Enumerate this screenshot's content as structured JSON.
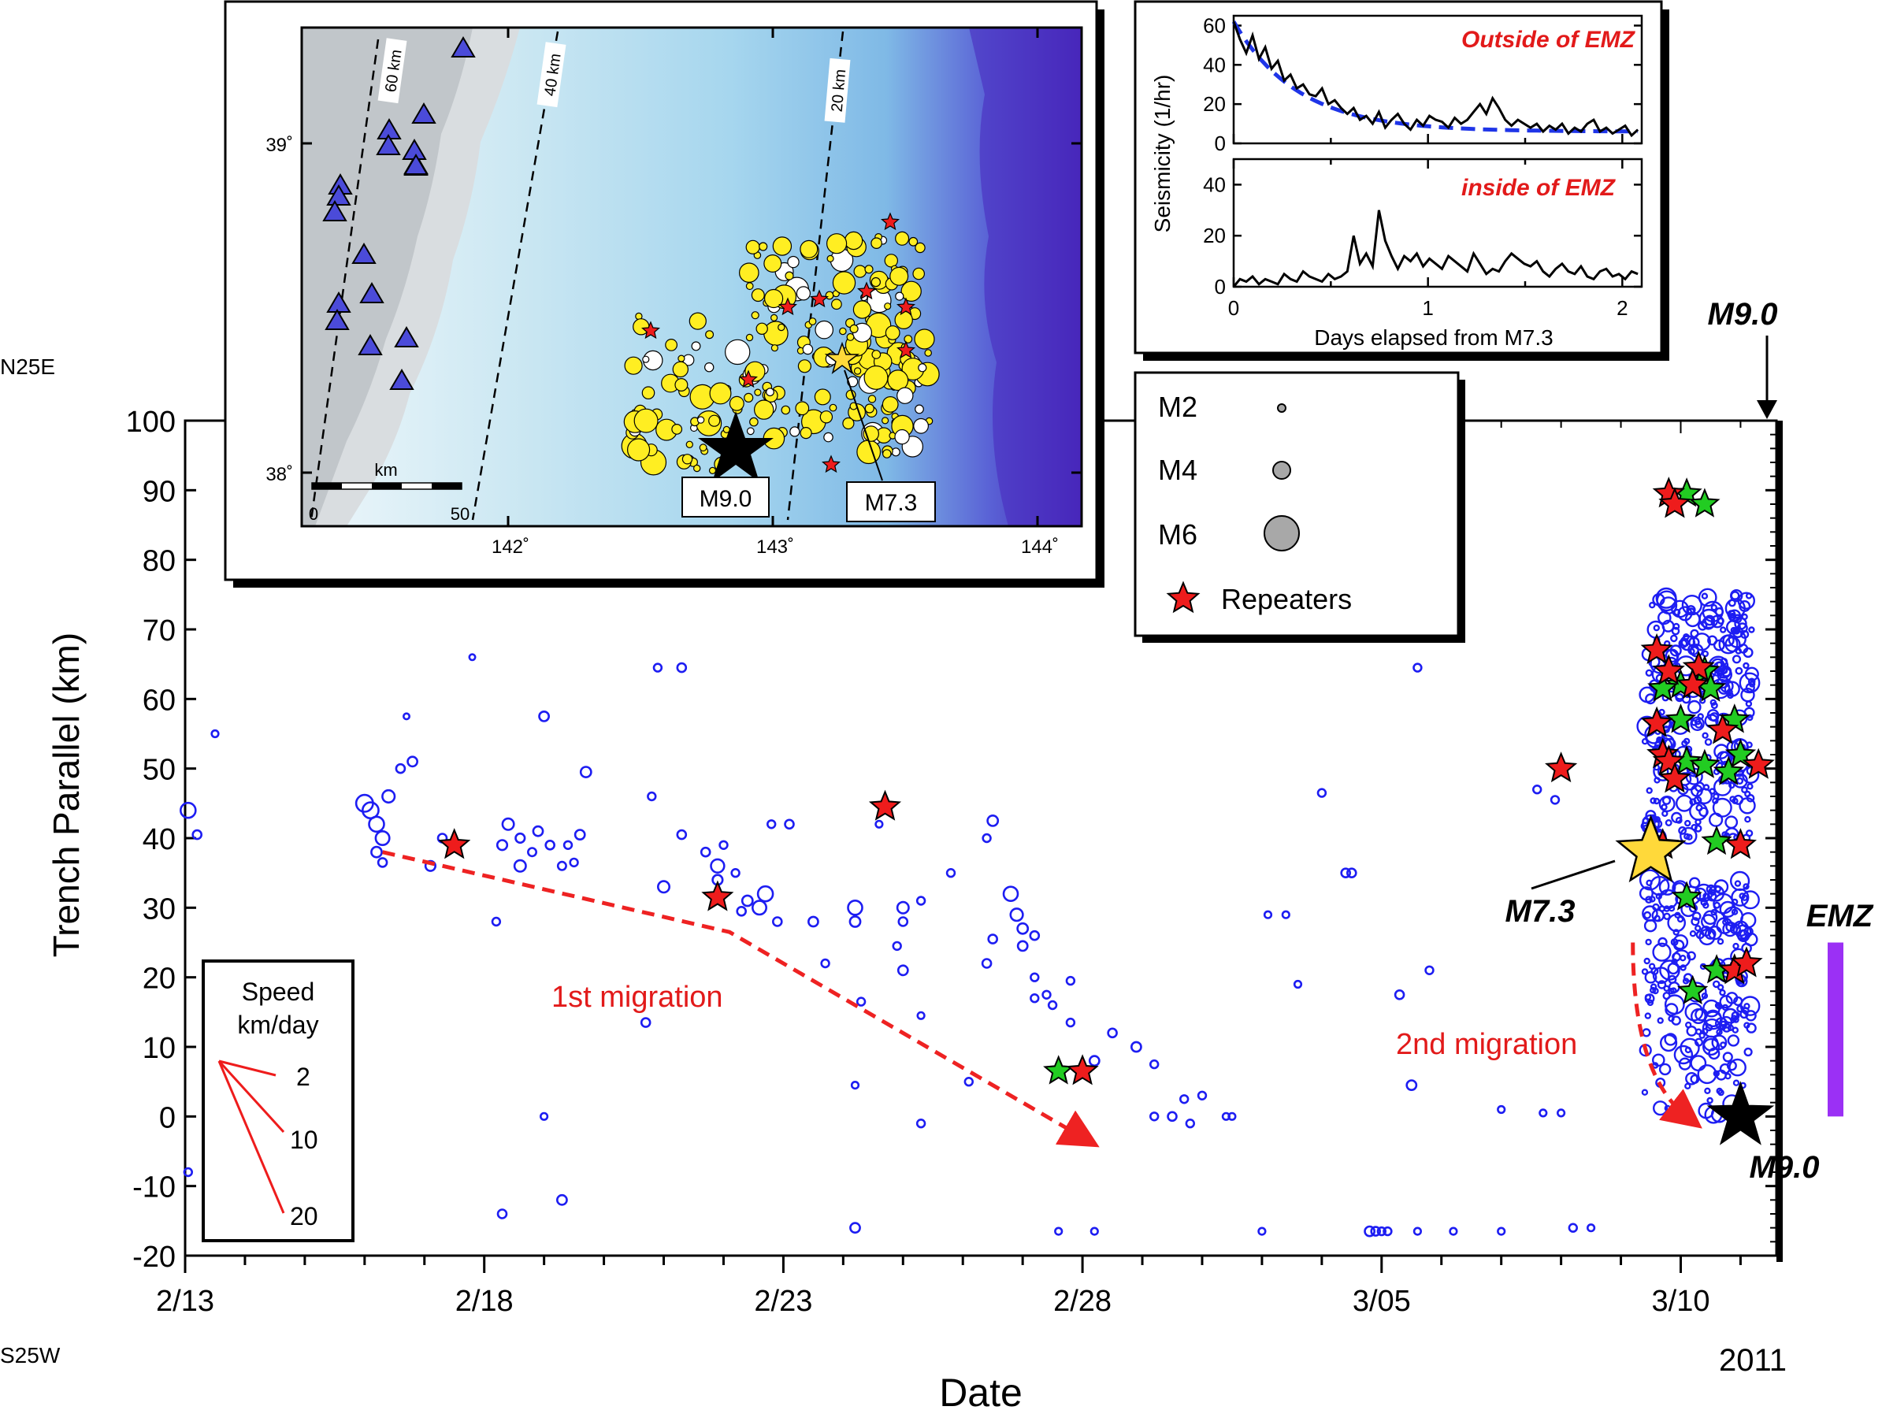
{
  "main_chart": {
    "type": "scatter",
    "xlabel": "Date",
    "ylabel": "Trench Parallel (km)",
    "year": "2011",
    "direction_top": "N25E",
    "direction_bottom": "S25W",
    "x_ticks": [
      {
        "label": "2/13",
        "day": 0
      },
      {
        "label": "2/18",
        "day": 5
      },
      {
        "label": "2/23",
        "day": 10
      },
      {
        "label": "2/28",
        "day": 15
      },
      {
        "label": "3/05",
        "day": 20
      },
      {
        "label": "3/10",
        "day": 25
      }
    ],
    "xlim_days_from_2_13": [
      0,
      26.6
    ],
    "ylim": [
      -20,
      100
    ],
    "y_ticks": [
      -20,
      -10,
      0,
      10,
      20,
      30,
      40,
      50,
      60,
      70,
      80,
      90,
      100
    ],
    "annotations": {
      "m90_top": "M9.0",
      "m90_bottom": "M9.0",
      "m73": "M7.3",
      "emz": "EMZ",
      "first_migration": "1st migration",
      "second_migration": "2nd migration"
    },
    "emz_range_km": [
      0,
      25
    ],
    "mainshock_m90": {
      "day": 26.0,
      "km": 0
    },
    "foreshock_m73": {
      "day": 24.5,
      "km": 38
    },
    "repeaters_red": [
      {
        "day": 4.5,
        "km": 39
      },
      {
        "day": 8.9,
        "km": 31.5
      },
      {
        "day": 11.7,
        "km": 44.5
      },
      {
        "day": 15.0,
        "km": 6.5
      },
      {
        "day": 23.0,
        "km": 50
      },
      {
        "day": 24.8,
        "km": 89.5
      },
      {
        "day": 24.9,
        "km": 88
      },
      {
        "day": 24.6,
        "km": 67
      },
      {
        "day": 24.8,
        "km": 64
      },
      {
        "day": 25.3,
        "km": 64.5
      },
      {
        "day": 25.2,
        "km": 62
      },
      {
        "day": 24.6,
        "km": 56.5
      },
      {
        "day": 24.7,
        "km": 52
      },
      {
        "day": 24.8,
        "km": 51
      },
      {
        "day": 24.9,
        "km": 48.5
      },
      {
        "day": 25.7,
        "km": 55.5
      },
      {
        "day": 26.3,
        "km": 50.5
      },
      {
        "day": 24.7,
        "km": 39
      },
      {
        "day": 26.0,
        "km": 39
      },
      {
        "day": 25.9,
        "km": 21
      },
      {
        "day": 26.1,
        "km": 22
      }
    ],
    "repeaters_green": [
      {
        "day": 14.6,
        "km": 6.5
      },
      {
        "day": 25.1,
        "km": 89.5
      },
      {
        "day": 25.4,
        "km": 88
      },
      {
        "day": 25.0,
        "km": 62
      },
      {
        "day": 25.4,
        "km": 64
      },
      {
        "day": 24.7,
        "km": 61.5
      },
      {
        "day": 25.5,
        "km": 61.5
      },
      {
        "day": 25.0,
        "km": 57
      },
      {
        "day": 25.9,
        "km": 57
      },
      {
        "day": 25.1,
        "km": 51
      },
      {
        "day": 25.4,
        "km": 50.5
      },
      {
        "day": 25.8,
        "km": 49.5
      },
      {
        "day": 26.0,
        "km": 52
      },
      {
        "day": 25.6,
        "km": 39.5
      },
      {
        "day": 25.1,
        "km": 31.5
      },
      {
        "day": 25.6,
        "km": 21
      },
      {
        "day": 25.2,
        "km": 18
      }
    ],
    "events": [
      {
        "day": 0.05,
        "km": 44,
        "m": 4.6
      },
      {
        "day": 0.2,
        "km": 40.5,
        "m": 3.2
      },
      {
        "day": 0.5,
        "km": 55,
        "m": 2.8
      },
      {
        "day": 0.05,
        "km": -8,
        "m": 3.0
      },
      {
        "day": 3.0,
        "km": 45,
        "m": 5.0
      },
      {
        "day": 3.1,
        "km": 44,
        "m": 4.8
      },
      {
        "day": 3.2,
        "km": 42,
        "m": 4.6
      },
      {
        "day": 3.3,
        "km": 40,
        "m": 4.3
      },
      {
        "day": 3.2,
        "km": 38,
        "m": 3.6
      },
      {
        "day": 3.3,
        "km": 36.5,
        "m": 3.2
      },
      {
        "day": 3.4,
        "km": 46,
        "m": 4.0
      },
      {
        "day": 3.6,
        "km": 50,
        "m": 3.2
      },
      {
        "day": 3.8,
        "km": 51,
        "m": 3.4
      },
      {
        "day": 3.7,
        "km": 57.5,
        "m": 2.6
      },
      {
        "day": 4.1,
        "km": 36,
        "m": 3.5
      },
      {
        "day": 4.3,
        "km": 40,
        "m": 3.2
      },
      {
        "day": 4.8,
        "km": 66,
        "m": 2.6
      },
      {
        "day": 5.2,
        "km": 28,
        "m": 3.0
      },
      {
        "day": 5.3,
        "km": 39,
        "m": 3.5
      },
      {
        "day": 5.4,
        "km": 42,
        "m": 3.8
      },
      {
        "day": 5.6,
        "km": 40,
        "m": 3.3
      },
      {
        "day": 5.6,
        "km": 36,
        "m": 3.8
      },
      {
        "day": 5.8,
        "km": 38,
        "m": 3.1
      },
      {
        "day": 5.9,
        "km": 41,
        "m": 3.4
      },
      {
        "day": 6.0,
        "km": 57.5,
        "m": 3.4
      },
      {
        "day": 6.1,
        "km": 39,
        "m": 3.2
      },
      {
        "day": 6.3,
        "km": 36,
        "m": 3.1
      },
      {
        "day": 6.4,
        "km": 39,
        "m": 3.0
      },
      {
        "day": 6.6,
        "km": 40.5,
        "m": 3.4
      },
      {
        "day": 6.7,
        "km": 49.5,
        "m": 3.6
      },
      {
        "day": 6.5,
        "km": 36.5,
        "m": 3.0
      },
      {
        "day": 5.3,
        "km": -14,
        "m": 3.2
      },
      {
        "day": 6.0,
        "km": 0,
        "m": 2.8
      },
      {
        "day": 6.3,
        "km": -12,
        "m": 3.4
      },
      {
        "day": 7.8,
        "km": 46,
        "m": 3.0
      },
      {
        "day": 8.0,
        "km": 33,
        "m": 3.8
      },
      {
        "day": 7.7,
        "km": 13.5,
        "m": 3.2
      },
      {
        "day": 7.9,
        "km": 64.5,
        "m": 3.0
      },
      {
        "day": 8.3,
        "km": 64.5,
        "m": 3.2
      },
      {
        "day": 8.3,
        "km": 40.5,
        "m": 3.2
      },
      {
        "day": 8.7,
        "km": 38,
        "m": 3.2
      },
      {
        "day": 8.9,
        "km": 36,
        "m": 4.2
      },
      {
        "day": 8.9,
        "km": 34,
        "m": 3.5
      },
      {
        "day": 9.0,
        "km": 39,
        "m": 3.0
      },
      {
        "day": 9.2,
        "km": 35,
        "m": 3.0
      },
      {
        "day": 9.3,
        "km": 29.5,
        "m": 3.2
      },
      {
        "day": 9.4,
        "km": 31,
        "m": 3.6
      },
      {
        "day": 9.6,
        "km": 30,
        "m": 4.3
      },
      {
        "day": 9.7,
        "km": 32,
        "m": 4.6
      },
      {
        "day": 9.8,
        "km": 42,
        "m": 3.0
      },
      {
        "day": 9.9,
        "km": 28,
        "m": 3.2
      },
      {
        "day": 10.1,
        "km": 42,
        "m": 3.2
      },
      {
        "day": 10.5,
        "km": 28,
        "m": 3.4
      },
      {
        "day": 10.7,
        "km": 22,
        "m": 3.0
      },
      {
        "day": 11.2,
        "km": 30,
        "m": 4.4
      },
      {
        "day": 11.2,
        "km": 28,
        "m": 3.6
      },
      {
        "day": 11.3,
        "km": 16.5,
        "m": 3.0
      },
      {
        "day": 11.6,
        "km": 42,
        "m": 2.8
      },
      {
        "day": 11.2,
        "km": 4.5,
        "m": 2.8
      },
      {
        "day": 11.2,
        "km": -16,
        "m": 3.4
      },
      {
        "day": 12.0,
        "km": 30,
        "m": 3.8
      },
      {
        "day": 12.0,
        "km": 28,
        "m": 3.2
      },
      {
        "day": 12.0,
        "km": 21,
        "m": 3.4
      },
      {
        "day": 11.9,
        "km": 24.5,
        "m": 3.0
      },
      {
        "day": 12.3,
        "km": 14.5,
        "m": 2.8
      },
      {
        "day": 12.3,
        "km": 31,
        "m": 3.0
      },
      {
        "day": 12.3,
        "km": -1,
        "m": 3.0
      },
      {
        "day": 12.8,
        "km": 35,
        "m": 3.0
      },
      {
        "day": 13.1,
        "km": 5,
        "m": 3.0
      },
      {
        "day": 13.4,
        "km": 40,
        "m": 3.0
      },
      {
        "day": 13.5,
        "km": 42.5,
        "m": 3.6
      },
      {
        "day": 13.5,
        "km": 25.5,
        "m": 3.2
      },
      {
        "day": 13.4,
        "km": 22,
        "m": 3.2
      },
      {
        "day": 13.8,
        "km": 32,
        "m": 4.4
      },
      {
        "day": 13.9,
        "km": 29,
        "m": 4.0
      },
      {
        "day": 14.0,
        "km": 27,
        "m": 3.6
      },
      {
        "day": 14.0,
        "km": 24.5,
        "m": 3.4
      },
      {
        "day": 14.2,
        "km": 26,
        "m": 3.2
      },
      {
        "day": 14.2,
        "km": 20,
        "m": 3.0
      },
      {
        "day": 14.2,
        "km": 17,
        "m": 3.0
      },
      {
        "day": 14.4,
        "km": 17.5,
        "m": 3.0
      },
      {
        "day": 14.5,
        "km": 16,
        "m": 3.0
      },
      {
        "day": 14.8,
        "km": 19.5,
        "m": 3.0
      },
      {
        "day": 14.8,
        "km": 13.5,
        "m": 3.0
      },
      {
        "day": 14.6,
        "km": -16.5,
        "m": 2.8
      },
      {
        "day": 15.2,
        "km": 8,
        "m": 3.4
      },
      {
        "day": 15.2,
        "km": -16.5,
        "m": 2.8
      },
      {
        "day": 15.5,
        "km": 12,
        "m": 3.2
      },
      {
        "day": 15.9,
        "km": 10,
        "m": 3.4
      },
      {
        "day": 16.2,
        "km": 7.5,
        "m": 3.0
      },
      {
        "day": 16.5,
        "km": 0,
        "m": 3.2
      },
      {
        "day": 16.2,
        "km": 0,
        "m": 3.0
      },
      {
        "day": 16.7,
        "km": 2.5,
        "m": 3.0
      },
      {
        "day": 16.8,
        "km": -1,
        "m": 3.0
      },
      {
        "day": 17.0,
        "km": 3,
        "m": 3.0
      },
      {
        "day": 17.4,
        "km": 0,
        "m": 2.8
      },
      {
        "day": 17.5,
        "km": 0,
        "m": 2.8
      },
      {
        "day": 18.0,
        "km": -16.5,
        "m": 2.8
      },
      {
        "day": 18.1,
        "km": 29,
        "m": 2.8
      },
      {
        "day": 18.4,
        "km": 29,
        "m": 2.8
      },
      {
        "day": 18.6,
        "km": 19,
        "m": 2.8
      },
      {
        "day": 19.0,
        "km": 46.5,
        "m": 3.0
      },
      {
        "day": 19.4,
        "km": 35,
        "m": 3.2
      },
      {
        "day": 19.5,
        "km": 35,
        "m": 3.2
      },
      {
        "day": 19.8,
        "km": -16.5,
        "m": 3.4
      },
      {
        "day": 19.9,
        "km": -16.5,
        "m": 3.2
      },
      {
        "day": 20.0,
        "km": -16.5,
        "m": 3.0
      },
      {
        "day": 20.1,
        "km": -16.5,
        "m": 3.0
      },
      {
        "day": 20.3,
        "km": 17.5,
        "m": 3.2
      },
      {
        "day": 20.5,
        "km": 4.5,
        "m": 3.4
      },
      {
        "day": 20.6,
        "km": 64.5,
        "m": 3.0
      },
      {
        "day": 20.6,
        "km": -16.5,
        "m": 2.8
      },
      {
        "day": 20.8,
        "km": 21,
        "m": 3.0
      },
      {
        "day": 21.2,
        "km": -16.5,
        "m": 2.8
      },
      {
        "day": 22.0,
        "km": 1,
        "m": 2.8
      },
      {
        "day": 22.0,
        "km": -16.5,
        "m": 2.8
      },
      {
        "day": 22.6,
        "km": 47,
        "m": 3.0
      },
      {
        "day": 22.7,
        "km": 0.5,
        "m": 2.8
      },
      {
        "day": 22.9,
        "km": 45.5,
        "m": 3.0
      },
      {
        "day": 23.0,
        "km": 0.5,
        "m": 2.8
      },
      {
        "day": 23.2,
        "km": -16,
        "m": 3.0
      },
      {
        "day": 23.5,
        "km": -16,
        "m": 2.8
      }
    ],
    "inset_speed": {
      "title": "Speed",
      "unit": "km/day",
      "values": [
        "2",
        "10",
        "20"
      ]
    }
  },
  "map_inset": {
    "lat_labels": [
      "39˚",
      "38˚"
    ],
    "lon_labels": [
      "142˚",
      "143˚",
      "144˚"
    ],
    "contour_labels": [
      "60 km",
      "40 km",
      "20 km"
    ],
    "scale_label": "km",
    "scale_values": [
      "0",
      "50"
    ],
    "m90_label": "M9.0",
    "m73_label": "M7.3"
  },
  "seismicity_inset": {
    "ylabel": "Seismicity (1/hr)",
    "xlabel": "Days elapsed from M7.3",
    "top_panel_label": "Outside of EMZ",
    "bottom_panel_label": "inside of EMZ",
    "x_ticks": [
      "0",
      "1",
      "2"
    ],
    "xlim": [
      0,
      2.1
    ],
    "top_y_ticks": [
      "0",
      "20",
      "40",
      "60"
    ],
    "bottom_y_ticks": [
      "0",
      "20",
      "40"
    ],
    "top_ylim": [
      0,
      65
    ],
    "bottom_ylim": [
      0,
      50
    ],
    "outside_series": [
      62,
      53,
      46,
      55,
      43,
      49,
      38,
      42,
      32,
      35,
      28,
      30,
      25,
      24,
      28,
      20,
      22,
      18,
      15,
      18,
      12,
      14,
      10,
      16,
      8,
      12,
      15,
      10,
      7,
      12,
      9,
      14,
      12,
      11,
      8,
      13,
      10,
      12,
      16,
      20,
      15,
      23,
      18,
      12,
      9,
      12,
      10,
      8,
      10,
      6,
      9,
      7,
      10,
      5,
      8,
      6,
      10,
      12,
      6,
      8,
      5,
      7,
      9,
      4,
      7
    ],
    "outside_fit_label": "",
    "inside_series": [
      0,
      3,
      2,
      4,
      1,
      3,
      2,
      1,
      5,
      3,
      2,
      6,
      4,
      3,
      2,
      5,
      3,
      4,
      6,
      20,
      9,
      13,
      8,
      30,
      18,
      12,
      7,
      12,
      10,
      13,
      8,
      11,
      9,
      7,
      12,
      10,
      8,
      6,
      13,
      9,
      5,
      7,
      6,
      10,
      13,
      11,
      9,
      8,
      10,
      6,
      4,
      7,
      9,
      6,
      5,
      8,
      4,
      3,
      6,
      7,
      4,
      5,
      3,
      6,
      5
    ]
  },
  "legend": {
    "items": [
      {
        "label": "M2",
        "magnitude": 2
      },
      {
        "label": "M4",
        "magnitude": 4
      },
      {
        "label": "M6",
        "magnitude": 6
      }
    ],
    "repeaters_label": "Repeaters"
  },
  "colors": {
    "events": "#1d1df2",
    "repeater_red": "#ee1c1c",
    "repeater_green": "#22cc22",
    "migration": "#ee2222",
    "emz_bar": "#9b30f5",
    "m73_star": "#ffd93a",
    "fit_line": "#1f35e8",
    "label_red": "#e21a1a"
  }
}
